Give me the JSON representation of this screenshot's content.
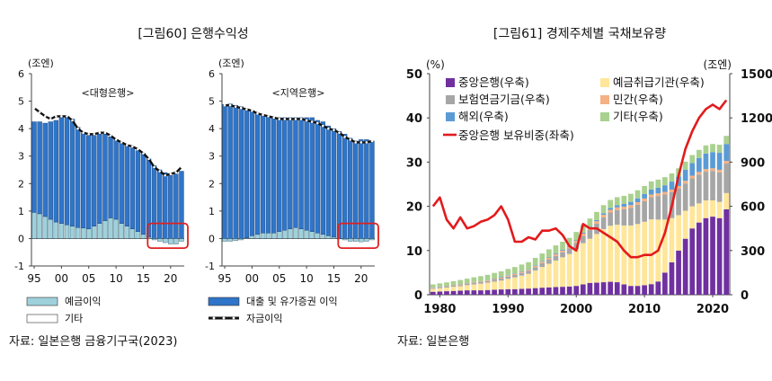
{
  "chart_data": [
    {
      "type": "bar",
      "title": "[그림60] 은행수익성",
      "unit": "(조엔)",
      "source": "자료: 일본은행 금융기구국(2023)",
      "x_tick_labels": [
        "95",
        "00",
        "05",
        "10",
        "15",
        "20"
      ],
      "y_tick_labels": [
        "-1",
        "0",
        "1",
        "2",
        "3",
        "4",
        "5",
        "6"
      ],
      "ylim": [
        -1,
        6
      ],
      "x": [
        1995,
        1996,
        1997,
        1998,
        1999,
        2000,
        2001,
        2002,
        2003,
        2004,
        2005,
        2006,
        2007,
        2008,
        2009,
        2010,
        2011,
        2012,
        2013,
        2014,
        2015,
        2016,
        2017,
        2018,
        2019,
        2020,
        2021,
        2022
      ],
      "legend": {
        "deposit": "예금이익",
        "lending": "대출 및 유가증권 이익",
        "other": "기타",
        "total": "자금이익"
      },
      "panels": [
        {
          "name": "<대형은행>",
          "series": [
            {
              "key": "deposit",
              "values": [
                0.95,
                0.9,
                0.8,
                0.7,
                0.6,
                0.55,
                0.5,
                0.45,
                0.4,
                0.38,
                0.35,
                0.45,
                0.55,
                0.65,
                0.75,
                0.7,
                0.55,
                0.45,
                0.35,
                0.25,
                0.15,
                0.05,
                -0.05,
                -0.1,
                -0.15,
                -0.2,
                -0.2,
                -0.1
              ]
            },
            {
              "key": "lending",
              "values": [
                3.3,
                3.35,
                3.4,
                3.55,
                3.7,
                3.85,
                3.95,
                3.9,
                3.65,
                3.45,
                3.4,
                3.3,
                3.25,
                3.15,
                2.95,
                2.9,
                2.95,
                2.95,
                2.95,
                2.95,
                2.95,
                2.85,
                2.65,
                2.5,
                2.4,
                2.3,
                2.35,
                2.45
              ]
            },
            {
              "key": "other",
              "values": [
                0.02,
                0.02,
                0.02,
                0.02,
                0.02,
                0.02,
                0.02,
                0.02,
                0.02,
                0.02,
                0.02,
                0.02,
                0.02,
                0.02,
                0.02,
                0.02,
                0.02,
                0.02,
                0.02,
                0.02,
                0.02,
                0.02,
                0.02,
                0.02,
                0.02,
                0.02,
                0.02,
                0.02
              ]
            },
            {
              "key": "total",
              "values": [
                4.75,
                4.6,
                4.45,
                4.35,
                4.45,
                4.45,
                4.45,
                4.3,
                4.0,
                3.85,
                3.8,
                3.8,
                3.85,
                3.85,
                3.75,
                3.6,
                3.5,
                3.4,
                3.35,
                3.25,
                3.1,
                2.9,
                2.6,
                2.45,
                2.3,
                2.35,
                2.4,
                2.6
              ]
            }
          ]
        },
        {
          "name": "<지역은행>",
          "series": [
            {
              "key": "deposit",
              "values": [
                -0.1,
                -0.1,
                -0.08,
                -0.05,
                0.02,
                0.1,
                0.15,
                0.2,
                0.2,
                0.2,
                0.25,
                0.3,
                0.35,
                0.4,
                0.35,
                0.3,
                0.25,
                0.2,
                0.15,
                0.1,
                0.05,
                0.0,
                -0.05,
                -0.1,
                -0.1,
                -0.12,
                -0.1,
                -0.05
              ]
            },
            {
              "key": "lending",
              "values": [
                4.88,
                4.9,
                4.85,
                4.8,
                4.7,
                4.55,
                4.4,
                4.3,
                4.25,
                4.2,
                4.15,
                4.1,
                4.05,
                4.0,
                4.05,
                4.1,
                4.15,
                4.1,
                4.1,
                4.0,
                3.95,
                3.9,
                3.8,
                3.65,
                3.55,
                3.6,
                3.6,
                3.55
              ]
            },
            {
              "key": "other",
              "values": [
                0.02,
                0.02,
                0.02,
                0.02,
                0.02,
                0.02,
                0.02,
                0.02,
                0.02,
                0.02,
                0.02,
                0.02,
                0.02,
                0.02,
                0.02,
                0.02,
                0.02,
                0.02,
                0.02,
                0.02,
                0.02,
                0.02,
                0.02,
                0.02,
                0.02,
                0.02,
                0.02,
                0.02
              ]
            },
            {
              "key": "total",
              "values": [
                4.85,
                4.85,
                4.8,
                4.75,
                4.7,
                4.65,
                4.55,
                4.5,
                4.45,
                4.4,
                4.35,
                4.35,
                4.35,
                4.35,
                4.35,
                4.3,
                4.25,
                4.2,
                4.1,
                4.0,
                3.95,
                3.85,
                3.7,
                3.6,
                3.5,
                3.5,
                3.5,
                3.55
              ]
            }
          ]
        }
      ]
    },
    {
      "type": "bar",
      "title": "[그림61] 경제주체별 국채보유량",
      "left_unit": "(%)",
      "right_unit": "(조엔)",
      "source": "자료: 일본은행",
      "x_tick_labels": [
        "1980",
        "1990",
        "2000",
        "2010",
        "2020"
      ],
      "y_left_tick_labels": [
        "0",
        "10",
        "20",
        "30",
        "40",
        "50"
      ],
      "y_right_tick_labels": [
        "0",
        "300",
        "600",
        "900",
        "1200",
        "1500"
      ],
      "ylim_left": [
        0,
        50
      ],
      "ylim_right": [
        0,
        1500
      ],
      "x": [
        1979,
        1980,
        1981,
        1982,
        1983,
        1984,
        1985,
        1986,
        1987,
        1988,
        1989,
        1990,
        1991,
        1992,
        1993,
        1994,
        1995,
        1996,
        1997,
        1998,
        1999,
        2000,
        2001,
        2002,
        2003,
        2004,
        2005,
        2006,
        2007,
        2008,
        2009,
        2010,
        2011,
        2012,
        2013,
        2014,
        2015,
        2016,
        2017,
        2018,
        2019,
        2020,
        2021,
        2022
      ],
      "series": [
        {
          "name": "중앙은행(우축)",
          "color": "#7030a0",
          "values": [
            20,
            22,
            24,
            26,
            28,
            30,
            30,
            30,
            32,
            34,
            36,
            38,
            38,
            40,
            42,
            45,
            48,
            50,
            52,
            54,
            56,
            60,
            70,
            80,
            82,
            85,
            88,
            85,
            70,
            60,
            60,
            65,
            72,
            90,
            150,
            220,
            300,
            380,
            450,
            490,
            520,
            530,
            520,
            580
          ]
        },
        {
          "name": "예금취급기관(우축)",
          "color": "#ffe699",
          "values": [
            20,
            22,
            25,
            28,
            30,
            35,
            40,
            45,
            50,
            55,
            60,
            70,
            80,
            90,
            100,
            120,
            140,
            160,
            180,
            200,
            220,
            250,
            280,
            300,
            330,
            360,
            380,
            390,
            400,
            410,
            420,
            430,
            440,
            420,
            360,
            300,
            240,
            190,
            150,
            130,
            120,
            110,
            110,
            110
          ]
        },
        {
          "name": "보험연금기금(우축)",
          "color": "#a6a6a6",
          "values": [
            5,
            6,
            6,
            7,
            8,
            8,
            9,
            10,
            10,
            12,
            14,
            15,
            16,
            18,
            20,
            22,
            26,
            30,
            32,
            34,
            38,
            42,
            50,
            60,
            70,
            80,
            90,
            100,
            110,
            120,
            130,
            140,
            150,
            160,
            170,
            175,
            180,
            185,
            190,
            195,
            195,
            200,
            200,
            200
          ]
        },
        {
          "name": "민간(우축)",
          "color": "#f4b183",
          "values": [
            3,
            3,
            3,
            3,
            4,
            4,
            5,
            5,
            5,
            6,
            6,
            7,
            7,
            8,
            8,
            9,
            10,
            10,
            11,
            12,
            12,
            14,
            15,
            16,
            17,
            18,
            18,
            18,
            18,
            18,
            18,
            18,
            18,
            18,
            18,
            18,
            18,
            18,
            18,
            18,
            18,
            18,
            18,
            18
          ]
        },
        {
          "name": "해외(우축)",
          "color": "#5b9bd5",
          "values": [
            2,
            2,
            2,
            2,
            2,
            2,
            2,
            2,
            2,
            3,
            3,
            3,
            3,
            3,
            3,
            4,
            4,
            4,
            5,
            5,
            5,
            5,
            6,
            6,
            8,
            10,
            12,
            14,
            18,
            22,
            26,
            30,
            34,
            38,
            45,
            55,
            65,
            75,
            85,
            95,
            105,
            110,
            115,
            115
          ]
        },
        {
          "name": "기타(우축)",
          "color": "#a9d18e",
          "values": [
            20,
            22,
            24,
            26,
            28,
            30,
            32,
            34,
            36,
            38,
            40,
            42,
            44,
            46,
            48,
            50,
            52,
            54,
            55,
            55,
            55,
            55,
            55,
            55,
            55,
            55,
            55,
            55,
            55,
            55,
            55,
            55,
            55,
            55,
            55,
            55,
            55,
            55,
            55,
            55,
            55,
            55,
            55,
            55
          ]
        },
        {
          "name": "중앙은행 보유비중(좌축)",
          "color": "#e31a1c",
          "type": "line",
          "axis": "left",
          "values": [
            20,
            22,
            17,
            15,
            17.5,
            15,
            15.5,
            16.5,
            17,
            18,
            20,
            17,
            12,
            12,
            13,
            12.5,
            14.5,
            14.5,
            15,
            13.5,
            11,
            10,
            16,
            15,
            15,
            14,
            13,
            12,
            10,
            8.5,
            8.5,
            9,
            9,
            10,
            14,
            20,
            27,
            33,
            37,
            40,
            42,
            43,
            42,
            44
          ]
        }
      ]
    }
  ]
}
